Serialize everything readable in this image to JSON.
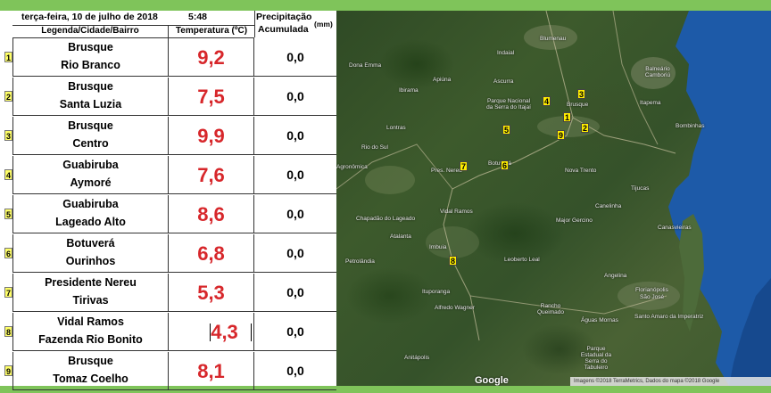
{
  "header": {
    "date": "terça-feira, 10 de julho de 2018",
    "time": "5:48",
    "precip_line1": "Precipitação",
    "precip_line2": "Acumulada",
    "precip_unit": "(mm)",
    "col_location": "Legenda/Cidade/Bairro",
    "col_temperature": "Temperatura (ºC)"
  },
  "stations": [
    {
      "num": "1",
      "city": "Brusque",
      "bairro": "Rio Branco",
      "temp": "9,2",
      "precip": "0,0"
    },
    {
      "num": "2",
      "city": "Brusque",
      "bairro": "Santa Luzia",
      "temp": "7,5",
      "precip": "0,0"
    },
    {
      "num": "3",
      "city": "Brusque",
      "bairro": "Centro",
      "temp": "9,9",
      "precip": "0,0"
    },
    {
      "num": "4",
      "city": "Guabiruba",
      "bairro": "Aymoré",
      "temp": "7,6",
      "precip": "0,0"
    },
    {
      "num": "5",
      "city": "Guabiruba",
      "bairro": "Lageado Alto",
      "temp": "8,6",
      "precip": "0,0"
    },
    {
      "num": "6",
      "city": "Botuverá",
      "bairro": "Ourinhos",
      "temp": "6,8",
      "precip": "0,0"
    },
    {
      "num": "7",
      "city": "Presidente Nereu",
      "bairro": "Tirivas",
      "temp": "5,3",
      "precip": "0,0"
    },
    {
      "num": "8",
      "city": "Vidal Ramos",
      "bairro": "Fazenda Rio Bonito",
      "temp": "4,3",
      "precip": "0,0"
    },
    {
      "num": "9",
      "city": "Brusque",
      "bairro": "Tomaz Coelho",
      "temp": "8,1",
      "precip": "0,0"
    }
  ],
  "map": {
    "markers": [
      "1",
      "2",
      "3",
      "4",
      "5",
      "6",
      "7",
      "8",
      "9"
    ],
    "labels": {
      "blumenau": "Blumenau",
      "camboriu": "Balneário Camboriú",
      "parque": "Parque Nacional da Serra do Itajaí",
      "brusque": "Brusque",
      "bombinhas": "Bombinhas",
      "itapema": "Itapema",
      "apiuna": "Apiúna",
      "botuvera": "Botuverá",
      "nova_trento": "Nova Trento",
      "pres_nereu": "Pres. Nereu",
      "vidal_ramos": "Vidal Ramos",
      "imbuia": "Imbuia",
      "alfredo": "Alfredo Wagner",
      "angelina": "Angelina",
      "florianopolis": "Florianópolis",
      "sao_jose": "São José",
      "ituporanga": "Ituporanga",
      "petrolandia": "Petrolândia",
      "leoberto": "Leoberto Leal",
      "major_gercino": "Major Gercino",
      "canelinha": "Canelinha",
      "tijucas": "Tijucas",
      "rancho_queimado": "Rancho Queimado",
      "aguas_mornas": "Águas Mornas",
      "atalanta": "Atalanta",
      "chapadao": "Chapadão do Lageado",
      "agronomica": "Agronômica",
      "rio_do_sul": "Rio do Sul",
      "lontras": "Lontras",
      "ibirama": "Ibirama",
      "dona_emma": "Dona Emma",
      "canasvieiras": "Canasvieiras",
      "serra_tabuleiro": "Parque Estadual da Serra do Tabuleiro",
      "santo_amaro": "Santo Amaro da Imperatriz",
      "anitapolis": "Anitápolis",
      "ascurra": "Ascurra",
      "indaial": "Indaial"
    },
    "google": "Google",
    "attribution": "Imagens ©2018 TerraMetrics, Dados do mapa ©2018 Google"
  }
}
